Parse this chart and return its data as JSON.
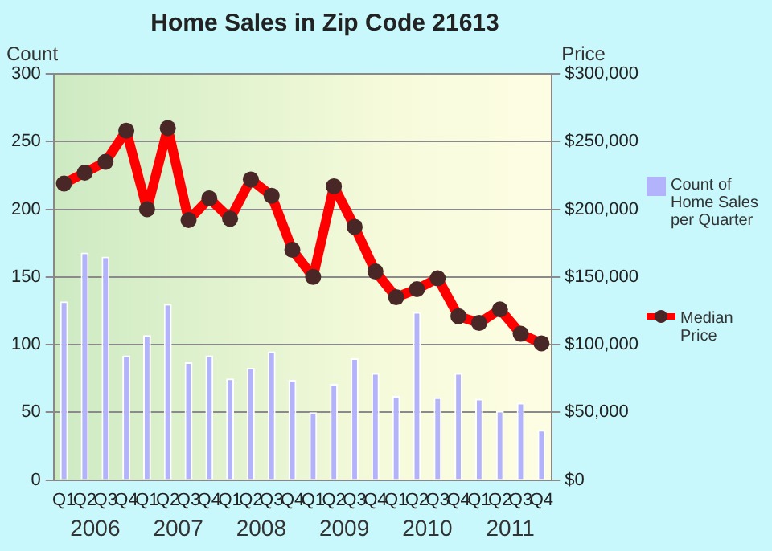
{
  "chart_data": {
    "type": "bar",
    "title": "Home Sales in Zip Code 21613",
    "ylabel": "Count",
    "y2label": "Price",
    "categories": [
      "Q1",
      "Q2",
      "Q3",
      "Q4",
      "Q1",
      "Q2",
      "Q3",
      "Q4",
      "Q1",
      "Q2",
      "Q3",
      "Q4",
      "Q1",
      "Q2",
      "Q3",
      "Q4",
      "Q1",
      "Q2",
      "Q3",
      "Q4",
      "Q1",
      "Q2",
      "Q3",
      "Q4"
    ],
    "annotations": [
      "2006",
      "2007",
      "2008",
      "2009",
      "2010",
      "2011"
    ],
    "series": [
      {
        "name": "Count of Home Sales per Quarter",
        "color": "#b3b3fb",
        "values": [
          132,
          168,
          165,
          92,
          107,
          130,
          87,
          92,
          75,
          83,
          95,
          74,
          50,
          71,
          90,
          79,
          62,
          124,
          61,
          79,
          60,
          51,
          57,
          37
        ]
      },
      {
        "name": "Median Price",
        "type": "line",
        "axis": "y2",
        "color": "#ff0000",
        "marker": "circle",
        "values": [
          219000,
          227000,
          235000,
          258000,
          200000,
          260000,
          192000,
          208000,
          193000,
          222000,
          210000,
          170000,
          150000,
          217000,
          187000,
          154000,
          135000,
          141000,
          149000,
          121000,
          116000,
          126000,
          108000,
          101000
        ]
      }
    ],
    "ylim": [
      0,
      300
    ],
    "yticks": [
      0,
      50,
      100,
      150,
      200,
      250,
      300
    ],
    "y2lim": [
      0,
      300000
    ],
    "y2ticks": [
      {
        "value": 0,
        "label": "$0"
      },
      {
        "value": 50000,
        "label": "$50,000"
      },
      {
        "value": 100000,
        "label": "$100,000"
      },
      {
        "value": 150000,
        "label": "$150,000"
      },
      {
        "value": 200000,
        "label": "$200,000"
      },
      {
        "value": 250000,
        "label": "$250,000"
      },
      {
        "value": 300000,
        "label": "$300,000"
      }
    ],
    "grid": "y",
    "legend": "right"
  }
}
